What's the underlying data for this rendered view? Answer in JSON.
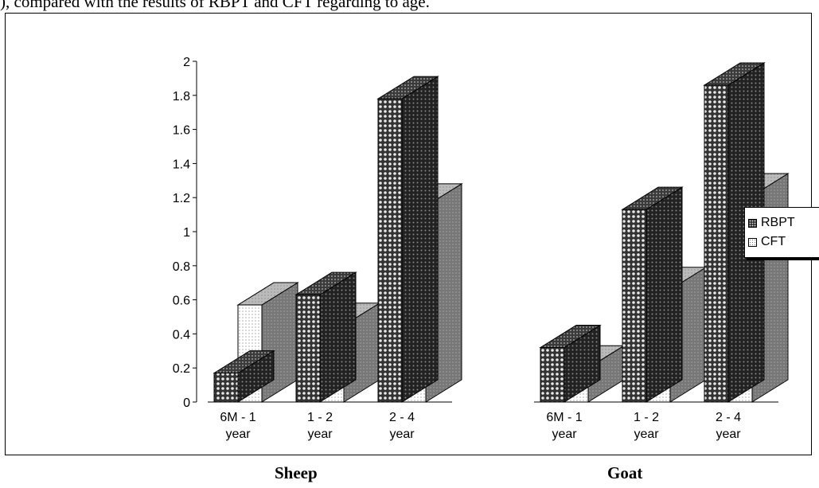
{
  "top_text": "), compared with the results of RBPT and CFT regarding to age.",
  "legend": [
    {
      "name": "RBPT",
      "pattern": "dark"
    },
    {
      "name": "CFT",
      "pattern": "light"
    }
  ],
  "panel_labels": [
    "Sheep",
    "Goat"
  ],
  "chart_data": [
    {
      "type": "bar",
      "title": "Sheep",
      "categories": [
        "6M - 1 year",
        "1 - 2 year",
        "2 - 4 year"
      ],
      "category_lines": [
        [
          "6M - 1",
          "year"
        ],
        [
          "1 - 2",
          "year"
        ],
        [
          "2 - 4",
          "year"
        ]
      ],
      "series": [
        {
          "name": "RBPT",
          "values": [
            0.17,
            0.63,
            1.78
          ]
        },
        {
          "name": "CFT",
          "values": [
            0.57,
            0.45,
            1.15
          ]
        }
      ],
      "ylim": [
        0,
        2
      ],
      "yticks": [
        "0",
        "0.2",
        "0.4",
        "0.6",
        "0.8",
        "1",
        "1.2",
        "1.4",
        "1.6",
        "1.8",
        "2"
      ],
      "style": "3d-bar"
    },
    {
      "type": "bar",
      "title": "Goat",
      "categories": [
        "6M - 1 year",
        "1 - 2 year",
        "2 - 4 year"
      ],
      "category_lines": [
        [
          "6M - 1",
          "year"
        ],
        [
          "1 - 2",
          "year"
        ],
        [
          "2 - 4",
          "year"
        ]
      ],
      "series": [
        {
          "name": "RBPT",
          "values": [
            0.32,
            1.13,
            1.86
          ]
        },
        {
          "name": "CFT",
          "values": [
            0.2,
            0.66,
            1.21
          ]
        }
      ],
      "ylim": [
        0,
        2
      ],
      "style": "3d-bar"
    }
  ]
}
